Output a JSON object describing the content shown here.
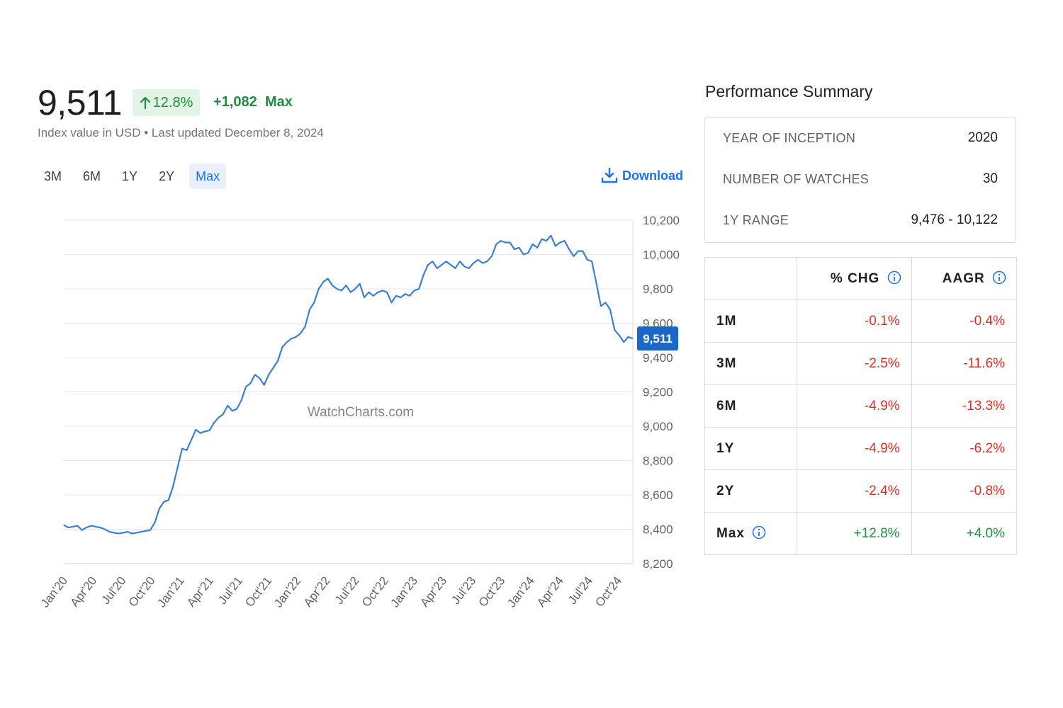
{
  "header": {
    "value": "9,511",
    "change_pct": "12.8%",
    "change_abs": "+1,082",
    "change_period": "Max",
    "subtitle": "Index value in USD • Last updated December 8, 2024"
  },
  "range_tabs": [
    {
      "label": "3M",
      "active": false
    },
    {
      "label": "6M",
      "active": false
    },
    {
      "label": "1Y",
      "active": false
    },
    {
      "label": "2Y",
      "active": false
    },
    {
      "label": "Max",
      "active": true
    }
  ],
  "download_label": "Download",
  "colors": {
    "accent": "#1a73e8",
    "line": "#3b7fd4",
    "positive": "#1e8e3e",
    "negative": "#d93025"
  },
  "chart_data": {
    "type": "line",
    "watermark": "WatchCharts.com",
    "ylim": [
      8200,
      10200
    ],
    "yticks": [
      8200,
      8400,
      8600,
      8800,
      9000,
      9200,
      9400,
      9600,
      9800,
      10000,
      10200
    ],
    "ytick_labels": [
      "8,200",
      "8,400",
      "8,600",
      "8,800",
      "9,000",
      "9,200",
      "9,400",
      "9,600",
      "9,800",
      "10,000",
      "10,200"
    ],
    "xtick_labels": [
      "Jan'20",
      "Apr'20",
      "Jul'20",
      "Oct'20",
      "Jan'21",
      "Apr'21",
      "Jul'21",
      "Oct'21",
      "Jan'22",
      "Apr'22",
      "Jul'22",
      "Oct'22",
      "Jan'23",
      "Apr'23",
      "Jul'23",
      "Oct'23",
      "Jan'24",
      "Apr'24",
      "Jul'24",
      "Oct'24"
    ],
    "last_value": 9511,
    "last_value_label": "9,511",
    "grid": true,
    "series": [
      {
        "values": [
          8425,
          8410,
          8415,
          8420,
          8395,
          8410,
          8420,
          8415,
          8410,
          8400,
          8385,
          8380,
          8375,
          8380,
          8385,
          8375,
          8380,
          8385,
          8390,
          8395,
          8440,
          8520,
          8560,
          8570,
          8650,
          8760,
          8870,
          8860,
          8920,
          8980,
          8960,
          8970,
          8975,
          9020,
          9050,
          9070,
          9120,
          9090,
          9100,
          9150,
          9230,
          9250,
          9300,
          9280,
          9240,
          9300,
          9340,
          9380,
          9460,
          9490,
          9510,
          9520,
          9540,
          9580,
          9680,
          9720,
          9800,
          9840,
          9860,
          9820,
          9800,
          9790,
          9820,
          9780,
          9800,
          9830,
          9750,
          9780,
          9760,
          9780,
          9790,
          9780,
          9720,
          9760,
          9750,
          9770,
          9760,
          9790,
          9800,
          9880,
          9940,
          9960,
          9920,
          9940,
          9960,
          9940,
          9920,
          9960,
          9930,
          9920,
          9950,
          9970,
          9950,
          9960,
          9990,
          10060,
          10080,
          10070,
          10070,
          10030,
          10040,
          10000,
          10010,
          10060,
          10040,
          10090,
          10080,
          10110,
          10050,
          10070,
          10080,
          10030,
          9990,
          10020,
          10020,
          9970,
          9960,
          9830,
          9700,
          9720,
          9680,
          9560,
          9530,
          9490,
          9520,
          9511
        ]
      }
    ]
  },
  "performance": {
    "title": "Performance Summary",
    "summary": [
      {
        "label": "YEAR OF INCEPTION",
        "value": "2020"
      },
      {
        "label": "NUMBER OF WATCHES",
        "value": "30"
      },
      {
        "label": "1Y RANGE",
        "value": "9,476 - 10,122"
      }
    ],
    "columns": [
      "% CHG",
      "AAGR"
    ],
    "rows": [
      {
        "period": "1M",
        "chg": "-0.1%",
        "aagr": "-0.4%",
        "sign": "neg"
      },
      {
        "period": "3M",
        "chg": "-2.5%",
        "aagr": "-11.6%",
        "sign": "neg"
      },
      {
        "period": "6M",
        "chg": "-4.9%",
        "aagr": "-13.3%",
        "sign": "neg"
      },
      {
        "period": "1Y",
        "chg": "-4.9%",
        "aagr": "-6.2%",
        "sign": "neg"
      },
      {
        "period": "2Y",
        "chg": "-2.4%",
        "aagr": "-0.8%",
        "sign": "neg"
      },
      {
        "period": "Max",
        "chg": "+12.8%",
        "aagr": "+4.0%",
        "sign": "pos"
      }
    ]
  }
}
